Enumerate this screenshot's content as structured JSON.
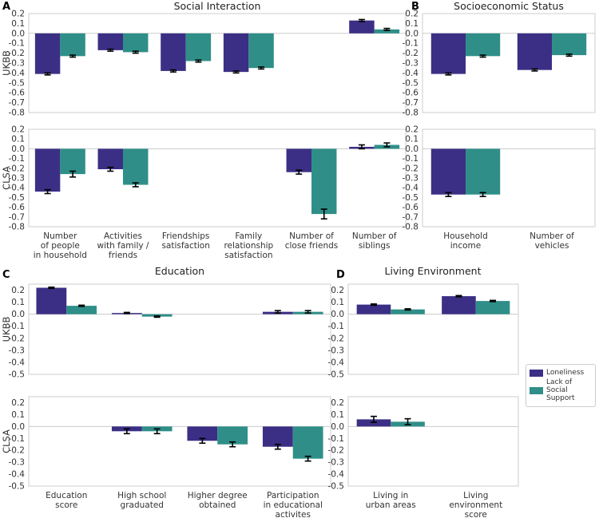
{
  "colors": {
    "loneliness": "#3b2f85",
    "support": "#2f8f88"
  },
  "legend": {
    "items": [
      {
        "label": "Loneliness",
        "color": "#3b2f85"
      },
      {
        "label": "Lack of\nSocial Support",
        "color": "#2f8f88"
      }
    ]
  },
  "panels": [
    {
      "letter": "A",
      "title": "Social Interaction"
    },
    {
      "letter": "B",
      "title": "Socioeconomic Status"
    },
    {
      "letter": "C",
      "title": "Education"
    },
    {
      "letter": "D",
      "title": "Living Environment"
    }
  ],
  "chart_data": [
    {
      "type": "bar",
      "panel": "A",
      "cohort": "UKBB",
      "title": "Social Interaction",
      "ylabel": "UKBB",
      "ylim": [
        -0.8,
        0.2
      ],
      "yticks": [
        0.2,
        0.1,
        0.0,
        -0.1,
        -0.2,
        -0.3,
        -0.4,
        -0.5,
        -0.6,
        -0.7,
        -0.8
      ],
      "categories": [
        "Number\nof people\nin household",
        "Activities\nwith family /\nfriends",
        "Friendships\nsatisfaction",
        "Family\nrelationship\nsatisfaction",
        "Number of\nclose friends",
        "Number of\nsiblings"
      ],
      "show_categories": false,
      "series": [
        {
          "name": "Loneliness",
          "values": [
            -0.41,
            -0.17,
            -0.38,
            -0.39,
            null,
            0.13
          ],
          "errors": [
            0.01,
            0.01,
            0.01,
            0.01,
            null,
            0.01
          ]
        },
        {
          "name": "Lack of Social Support",
          "values": [
            -0.23,
            -0.19,
            -0.28,
            -0.35,
            null,
            0.04
          ],
          "errors": [
            0.01,
            0.01,
            0.01,
            0.01,
            null,
            0.01
          ]
        }
      ]
    },
    {
      "type": "bar",
      "panel": "A",
      "cohort": "CLSA",
      "ylabel": "CLSA",
      "ylim": [
        -0.8,
        0.2
      ],
      "yticks": [
        0.2,
        0.1,
        0.0,
        -0.1,
        -0.2,
        -0.3,
        -0.4,
        -0.5,
        -0.6,
        -0.7,
        -0.8
      ],
      "categories": [
        "Number\nof people\nin household",
        "Activities\nwith family /\nfriends",
        "Friendships\nsatisfaction",
        "Family\nrelationship\nsatisfaction",
        "Number of\nclose friends",
        "Number of\nsiblings"
      ],
      "show_categories": true,
      "series": [
        {
          "name": "Loneliness",
          "values": [
            -0.44,
            -0.21,
            null,
            null,
            -0.24,
            0.02
          ],
          "errors": [
            0.02,
            0.02,
            null,
            null,
            0.02,
            0.02
          ]
        },
        {
          "name": "Lack of Social Support",
          "values": [
            -0.26,
            -0.37,
            null,
            null,
            -0.67,
            0.04
          ],
          "errors": [
            0.03,
            0.02,
            null,
            null,
            0.05,
            0.02
          ]
        }
      ]
    },
    {
      "type": "bar",
      "panel": "B",
      "cohort": "UKBB",
      "title": "Socioeconomic Status",
      "ylim": [
        -0.8,
        0.2
      ],
      "yticks": [
        0.2,
        0.1,
        0.0,
        -0.1,
        -0.2,
        -0.3,
        -0.4,
        -0.5,
        -0.6,
        -0.7,
        -0.8
      ],
      "categories": [
        "Household\nincome",
        "Number of\nvehicles"
      ],
      "show_categories": false,
      "series": [
        {
          "name": "Loneliness",
          "values": [
            -0.41,
            -0.37
          ],
          "errors": [
            0.01,
            0.01
          ]
        },
        {
          "name": "Lack of Social Support",
          "values": [
            -0.23,
            -0.22
          ],
          "errors": [
            0.01,
            0.01
          ]
        }
      ]
    },
    {
      "type": "bar",
      "panel": "B",
      "cohort": "CLSA",
      "ylim": [
        -0.8,
        0.2
      ],
      "yticks": [
        0.2,
        0.1,
        0.0,
        -0.1,
        -0.2,
        -0.3,
        -0.4,
        -0.5,
        -0.6,
        -0.7,
        -0.8
      ],
      "categories": [
        "Household\nincome",
        "Number of\nvehicles"
      ],
      "show_categories": true,
      "series": [
        {
          "name": "Loneliness",
          "values": [
            -0.47,
            null
          ],
          "errors": [
            0.02,
            null
          ]
        },
        {
          "name": "Lack of Social Support",
          "values": [
            -0.47,
            null
          ],
          "errors": [
            0.02,
            null
          ]
        }
      ]
    },
    {
      "type": "bar",
      "panel": "C",
      "cohort": "UKBB",
      "title": "Education",
      "ylabel": "UKBB",
      "ylim": [
        -0.5,
        0.25
      ],
      "yticks": [
        0.2,
        0.1,
        0.0,
        -0.1,
        -0.2,
        -0.3,
        -0.4,
        -0.5
      ],
      "categories": [
        "Education\nscore",
        "High school\ngraduated",
        "Higher degree\nobtained",
        "Participation\nin educational\nactivites"
      ],
      "show_categories": false,
      "series": [
        {
          "name": "Loneliness",
          "values": [
            0.22,
            0.01,
            null,
            0.02
          ],
          "errors": [
            0.005,
            0.005,
            null,
            0.01
          ]
        },
        {
          "name": "Lack of Social Support",
          "values": [
            0.07,
            -0.02,
            null,
            0.02
          ],
          "errors": [
            0.005,
            0.005,
            null,
            0.01
          ]
        }
      ]
    },
    {
      "type": "bar",
      "panel": "C",
      "cohort": "CLSA",
      "ylabel": "CLSA",
      "ylim": [
        -0.5,
        0.25
      ],
      "yticks": [
        0.2,
        0.1,
        0.0,
        -0.1,
        -0.2,
        -0.3,
        -0.4,
        -0.5
      ],
      "categories": [
        "Education\nscore",
        "High school\ngraduated",
        "Higher degree\nobtained",
        "Participation\nin educational\nactivites"
      ],
      "show_categories": true,
      "series": [
        {
          "name": "Loneliness",
          "values": [
            null,
            -0.04,
            -0.12,
            -0.17
          ],
          "errors": [
            null,
            0.02,
            0.02,
            0.02
          ]
        },
        {
          "name": "Lack of Social Support",
          "values": [
            null,
            -0.04,
            -0.15,
            -0.27
          ],
          "errors": [
            null,
            0.02,
            0.02,
            0.02
          ]
        }
      ]
    },
    {
      "type": "bar",
      "panel": "D",
      "cohort": "UKBB",
      "title": "Living Environment",
      "ylim": [
        -0.5,
        0.25
      ],
      "yticks": [
        0.2,
        0.1,
        0.0,
        -0.1,
        -0.2,
        -0.3,
        -0.4,
        -0.5
      ],
      "categories": [
        "Living in\nurban areas",
        "Living\nenvironment\nscore"
      ],
      "show_categories": false,
      "series": [
        {
          "name": "Loneliness",
          "values": [
            0.08,
            0.15
          ],
          "errors": [
            0.005,
            0.005
          ]
        },
        {
          "name": "Lack of Social Support",
          "values": [
            0.04,
            0.11
          ],
          "errors": [
            0.005,
            0.005
          ]
        }
      ]
    },
    {
      "type": "bar",
      "panel": "D",
      "cohort": "CLSA",
      "ylim": [
        -0.5,
        0.25
      ],
      "yticks": [
        0.2,
        0.1,
        0.0,
        -0.1,
        -0.2,
        -0.3,
        -0.4,
        -0.5
      ],
      "categories": [
        "Living in\nurban areas",
        "Living\nenvironment\nscore"
      ],
      "show_categories": true,
      "series": [
        {
          "name": "Loneliness",
          "values": [
            0.06,
            null
          ],
          "errors": [
            0.025,
            null
          ]
        },
        {
          "name": "Lack of Social Support",
          "values": [
            0.04,
            null
          ],
          "errors": [
            0.025,
            null
          ]
        }
      ]
    }
  ]
}
